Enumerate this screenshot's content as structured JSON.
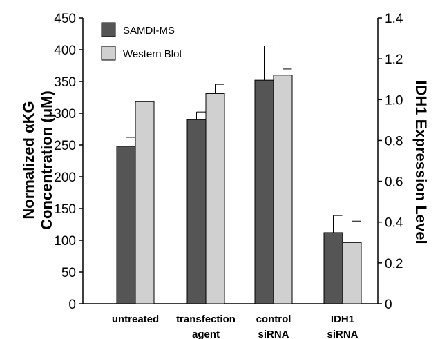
{
  "chart_data": {
    "type": "bar",
    "categories": [
      [
        "untreated"
      ],
      [
        "transfection",
        "agent"
      ],
      [
        "control",
        "siRNA"
      ],
      [
        "IDH1",
        "siRNA"
      ]
    ],
    "series": [
      {
        "name": "SAMDI-MS",
        "axis": "left",
        "values": [
          248,
          290,
          352,
          112
        ],
        "errors": [
          14,
          12,
          54,
          27
        ],
        "color": "#555555"
      },
      {
        "name": "Western Blot",
        "axis": "right",
        "values": [
          0.99,
          1.03,
          1.12,
          0.3
        ],
        "errors": [
          0,
          0.045,
          0.03,
          0.105
        ],
        "color": "#d0d0d0"
      }
    ],
    "ylabel_left_lines": [
      "Normalized αKG",
      "Concentration (μM)"
    ],
    "ylabel_right": "IDH1 Expression Level",
    "ylim_left": [
      0,
      450
    ],
    "yticks_left": [
      "0",
      "50",
      "100",
      "150",
      "200",
      "250",
      "300",
      "350",
      "400",
      "450"
    ],
    "ylim_right": [
      0,
      1.4
    ],
    "yticks_right": [
      "0",
      "0.2",
      "0.4",
      "0.6",
      "0.8",
      "1.0",
      "1.2",
      "1.4"
    ],
    "legend_position": "top-left",
    "grid": false
  }
}
